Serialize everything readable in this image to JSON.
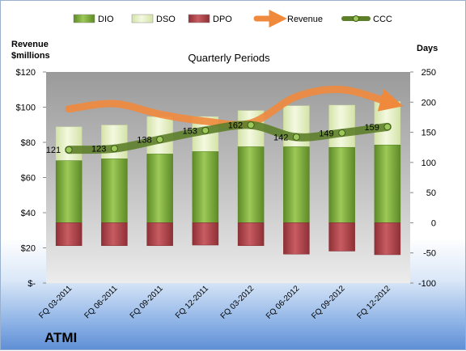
{
  "chart_data": {
    "type": "bar",
    "title": "Quarterly Periods",
    "left_axis_label_line1": "Revenue",
    "left_axis_label_line2": "$millions",
    "right_axis_label": "Days",
    "company": "ATMI",
    "categories": [
      "FQ 03-2011",
      "FQ 06-2011",
      "FQ 09-2011",
      "FQ 12-2011",
      "FQ 03-2012",
      "FQ 06-2012",
      "FQ 09-2012",
      "FQ 12-2012"
    ],
    "left_axis": {
      "min": 0,
      "max": 120,
      "ticks": [
        0,
        20,
        40,
        60,
        80,
        100,
        120
      ],
      "tick_labels": [
        "$-",
        "$20",
        "$40",
        "$60",
        "$80",
        "$100",
        "$120"
      ]
    },
    "right_axis": {
      "min": -100,
      "max": 250,
      "ticks": [
        -100,
        -50,
        0,
        50,
        100,
        150,
        200,
        250
      ],
      "tick_labels": [
        "-100",
        "-50",
        "0",
        "50",
        "100",
        "150",
        "200",
        "250"
      ]
    },
    "series": [
      {
        "name": "DIO",
        "axis": "right",
        "kind": "stacked-bar",
        "color": "#7aa83a",
        "values": [
          103,
          106,
          114,
          118,
          126,
          126,
          125,
          129
        ]
      },
      {
        "name": "DSO",
        "axis": "right",
        "kind": "stacked-bar",
        "color": "#e4efc6",
        "values": [
          56,
          56,
          62,
          58,
          60,
          68,
          70,
          72
        ]
      },
      {
        "name": "DPO",
        "axis": "right",
        "kind": "bar-negative",
        "color": "#b64c52",
        "values": [
          -38,
          -38,
          -38,
          -37,
          -38,
          -52,
          -47,
          -53
        ]
      },
      {
        "name": "Revenue",
        "axis": "left",
        "kind": "line",
        "color": "#ef8a3d",
        "values": [
          99,
          102,
          96,
          92,
          91,
          106,
          110,
          103
        ]
      },
      {
        "name": "CCC",
        "axis": "right",
        "kind": "line",
        "color": "#5e7f2a",
        "values": [
          121,
          123,
          138,
          153,
          162,
          142,
          149,
          159
        ],
        "data_labels": [
          "121",
          "123",
          "138",
          "153",
          "162",
          "142",
          "149",
          "159"
        ]
      }
    ],
    "legend": {
      "position": "top",
      "items": [
        "DIO",
        "DSO",
        "DPO",
        "Revenue",
        "CCC"
      ]
    },
    "grid": false
  }
}
